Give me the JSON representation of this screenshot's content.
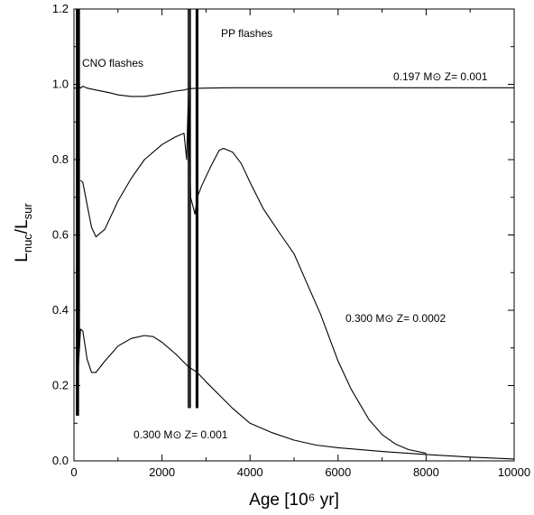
{
  "chart_data": {
    "type": "line",
    "xlabel": "Age [10⁶ yr]",
    "ylabel": "L_nuc/L_sur",
    "xlim": [
      0,
      10000
    ],
    "ylim": [
      0.0,
      1.2
    ],
    "x_ticks": [
      0,
      2000,
      4000,
      6000,
      8000,
      10000
    ],
    "y_ticks": [
      0.0,
      0.2,
      0.4,
      0.6,
      0.8,
      1.0,
      1.2
    ],
    "x_tick_labels": [
      "0",
      "2000",
      "4000",
      "6000",
      "8000",
      "10000"
    ],
    "y_tick_labels": [
      "0.0",
      "0.2",
      "0.4",
      "0.6",
      "0.8",
      "1.0",
      "1.2"
    ],
    "annotations": [
      "CNO flashes",
      "PP flashes"
    ],
    "series": [
      {
        "name": "0.197 M⊙  Z= 0.001",
        "x": [
          0,
          60,
          80,
          100,
          150,
          200,
          300,
          500,
          800,
          1000,
          1300,
          1600,
          2000,
          2300,
          2500,
          2600,
          2700,
          3000,
          3500,
          4000,
          5000,
          6000,
          7000,
          8000,
          9000,
          10000
        ],
        "y": [
          0.99,
          0.99,
          0.995,
          0.995,
          0.99,
          0.995,
          0.99,
          0.985,
          0.978,
          0.972,
          0.968,
          0.968,
          0.975,
          0.982,
          0.985,
          0.988,
          0.989,
          0.99,
          0.991,
          0.991,
          0.991,
          0.991,
          0.991,
          0.991,
          0.991,
          0.991
        ]
      },
      {
        "name": "0.300 M⊙  Z= 0.0002",
        "x": [
          150,
          200,
          300,
          400,
          500,
          700,
          1000,
          1300,
          1600,
          2000,
          2300,
          2500,
          2560,
          2600,
          2650,
          2750,
          2800,
          2900,
          3100,
          3300,
          3400,
          3600,
          3800,
          4000,
          4300,
          4700,
          5000,
          5300,
          5600,
          6000,
          6300,
          6700,
          7000,
          7300,
          7600,
          8000
        ],
        "y": [
          0.745,
          0.74,
          0.68,
          0.62,
          0.595,
          0.615,
          0.69,
          0.75,
          0.8,
          0.84,
          0.86,
          0.87,
          0.8,
          0.98,
          0.7,
          0.655,
          0.7,
          0.73,
          0.78,
          0.825,
          0.83,
          0.82,
          0.79,
          0.74,
          0.67,
          0.6,
          0.55,
          0.47,
          0.39,
          0.265,
          0.19,
          0.11,
          0.07,
          0.045,
          0.03,
          0.02
        ]
      },
      {
        "name": "0.300 M⊙  Z= 0.001",
        "x": [
          100,
          150,
          200,
          300,
          400,
          500,
          700,
          1000,
          1300,
          1600,
          1800,
          2000,
          2300,
          2600,
          2800,
          3000,
          3300,
          3600,
          4000,
          4500,
          5000,
          5500,
          6000,
          7000,
          8000,
          9000,
          10000
        ],
        "y": [
          0.25,
          0.35,
          0.345,
          0.27,
          0.235,
          0.235,
          0.265,
          0.305,
          0.325,
          0.333,
          0.33,
          0.315,
          0.285,
          0.25,
          0.235,
          0.21,
          0.175,
          0.14,
          0.1,
          0.075,
          0.055,
          0.042,
          0.035,
          0.025,
          0.017,
          0.01,
          0.005
        ]
      }
    ],
    "flash_spikes": [
      {
        "x": 60,
        "y_low": 0.12,
        "y_high": 1.2
      },
      {
        "x": 80,
        "y_low": 0.12,
        "y_high": 1.2
      },
      {
        "x": 100,
        "y_low": 0.12,
        "y_high": 1.2
      },
      {
        "x": 120,
        "y_low": 0.3,
        "y_high": 1.2
      },
      {
        "x": 2600,
        "y_low": 0.14,
        "y_high": 1.2
      },
      {
        "x": 2640,
        "y_low": 0.14,
        "y_high": 1.2
      },
      {
        "x": 2780,
        "y_low": 0.14,
        "y_high": 1.2
      },
      {
        "x": 2810,
        "y_low": 0.14,
        "y_high": 1.2
      }
    ]
  }
}
